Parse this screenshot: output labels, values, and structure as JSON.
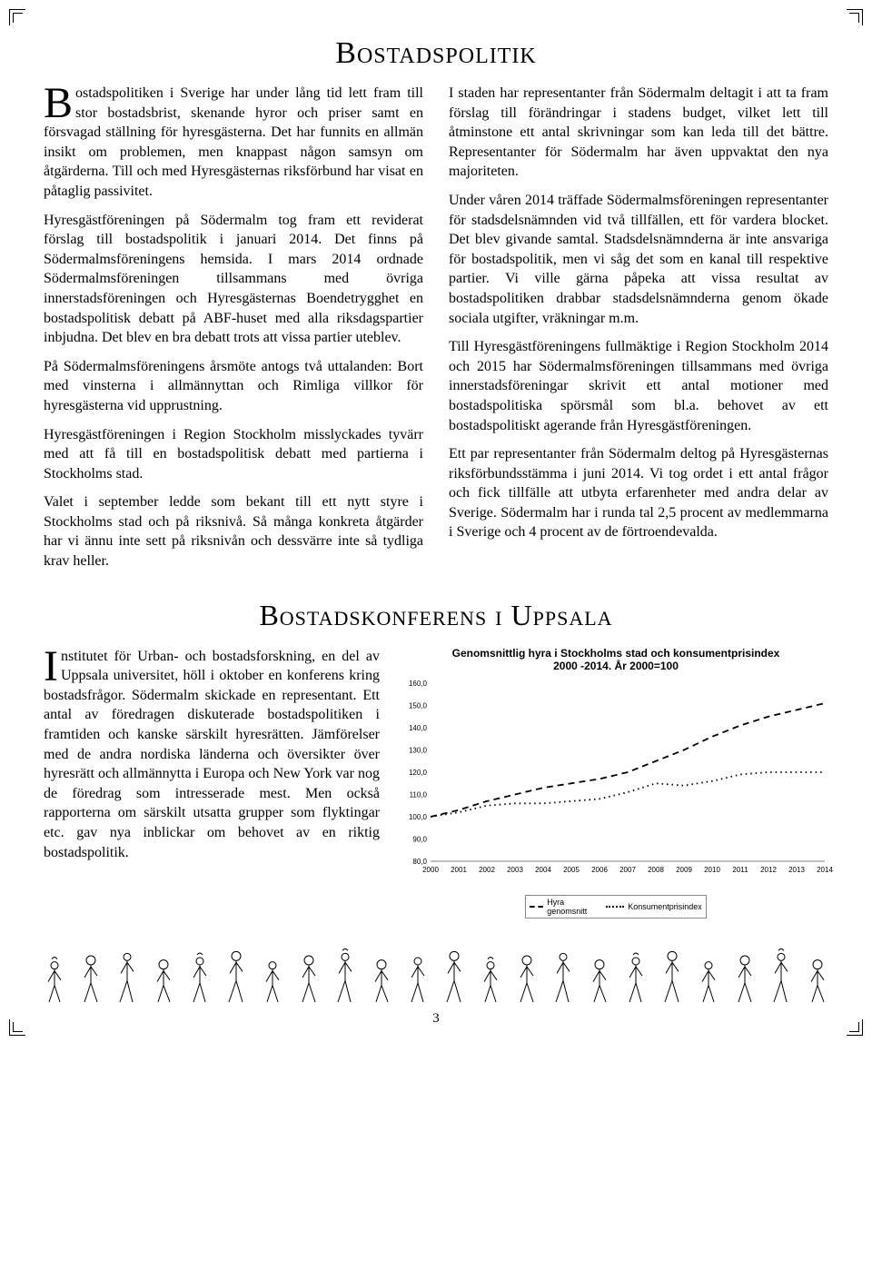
{
  "page_number": "3",
  "title1": "Bostadspolitik",
  "title2": "Bostadskonferens i Uppsala",
  "article1": {
    "p1": "Bostadspolitiken i Sverige har under lång tid lett fram till stor bostadsbrist, skenande hyror och priser samt en försvagad ställning för hyresgästerna. Det har funnits en allmän insikt om problemen, men knappast någon samsyn om åtgärderna. Till och med Hyresgästernas riksförbund har visat en påtaglig passivitet.",
    "p2": "Hyresgästföreningen på Södermalm tog fram ett reviderat förslag till bostadspolitik i januari 2014. Det finns på Södermalmsföreningens hemsida. I mars 2014 ordnade Södermalmsföreningen tillsammans med övriga innerstadsföreningen och Hyresgästernas Boendetrygghet en bostadspolitisk debatt på ABF-huset med alla riksdagspartier inbjudna. Det blev en bra debatt trots att vissa partier uteblev.",
    "p3": "På Södermalmsföreningens årsmöte antogs två uttalanden: Bort med vinsterna i allmännyttan och Rimliga villkor för hyresgästerna vid upprustning.",
    "p4": "Hyresgästföreningen i Region Stockholm misslyckades tyvärr med att få till en bostadspolitisk debatt med partierna i Stockholms stad.",
    "p5": "Valet i september ledde som bekant till ett nytt styre i Stockholms stad och på riksnivå. Så många konkreta åtgärder har vi ännu inte sett på riksnivån och dessvärre inte så tydliga krav heller.",
    "p6": "I staden har representanter från Södermalm deltagit i att ta fram förslag till förändringar i stadens budget, vilket lett till åtminstone ett antal skrivningar som kan leda till det bättre. Representanter för Södermalm har även uppvaktat den nya majoriteten.",
    "p7": "Under våren 2014 träffade Södermalmsföreningen representanter för stadsdelsnämnden vid två tillfällen, ett för vardera blocket. Det blev givande samtal. Stadsdelsnämnderna är inte ansvariga för bostadspolitik, men vi såg det som en kanal till respektive partier. Vi ville gärna påpeka att vissa resultat av bostadspolitiken drabbar stadsdelsnämnderna genom ökade sociala utgifter, vräkningar m.m.",
    "p8": "Till Hyresgästföreningens fullmäktige i Region Stockholm 2014 och 2015 har Södermalmsföreningen tillsammans med övriga innerstadsföreningar skrivit ett antal motioner med bostadspolitiska spörsmål som bl.a. behovet av ett bostadspolitiskt agerande från Hyresgästföreningen.",
    "p9": "Ett par representanter från Södermalm deltog på Hyresgästernas riksförbundsstämma i juni 2014. Vi tog ordet i ett antal frågor och fick tillfälle att utbyta erfarenheter med andra delar av Sverige. Södermalm har i runda tal 2,5 procent av medlemmarna i Sverige och 4 procent av de förtroendevalda."
  },
  "article2": {
    "p1": "Institutet för Urban- och bostadsforskning, en del av Uppsala universitet, höll i oktober en konferens kring bostadsfrågor. Södermalm skickade en representant. Ett antal av föredragen diskuterade bostadspolitiken i framtiden och kanske särskilt hyresrätten. Jämförelser med de andra nordiska länderna och översikter över hyresrätt och allmännytta i Europa och New York var nog de föredrag som intresserade mest. Men också rapporterna om särskilt utsatta grupper som flyktingar etc. gav nya inblickar om behovet av en riktig bostadspolitik."
  },
  "chart": {
    "title_line1": "Genomsnittlig hyra i Stockholms stad och konsumentprisindex",
    "title_line2": "2000 -2014. År 2000=100",
    "years": [
      "2000",
      "2001",
      "2002",
      "2003",
      "2004",
      "2005",
      "2006",
      "2007",
      "2008",
      "2009",
      "2010",
      "2011",
      "2012",
      "2013",
      "2014"
    ],
    "y_labels": [
      "80,0",
      "90,0",
      "100,0",
      "110,0",
      "120,0",
      "130,0",
      "140,0",
      "150,0",
      "160,0"
    ],
    "ylim": [
      80,
      160
    ],
    "series": {
      "hyra": {
        "label": "Hyra genomsnitt",
        "style": "dashed",
        "color": "#000000",
        "values": [
          100,
          103,
          107,
          110,
          113,
          115,
          117,
          120,
          125,
          130,
          136,
          141,
          145,
          148,
          151
        ]
      },
      "kpi": {
        "label": "Konsumentprisindex",
        "style": "dotted",
        "color": "#000000",
        "values": [
          100,
          102,
          105,
          106,
          106,
          107,
          108,
          111,
          115,
          114,
          116,
          119,
          120,
          120,
          120
        ]
      }
    },
    "background_color": "#ffffff",
    "axis_color": "#000000",
    "label_fontsize": 8
  }
}
